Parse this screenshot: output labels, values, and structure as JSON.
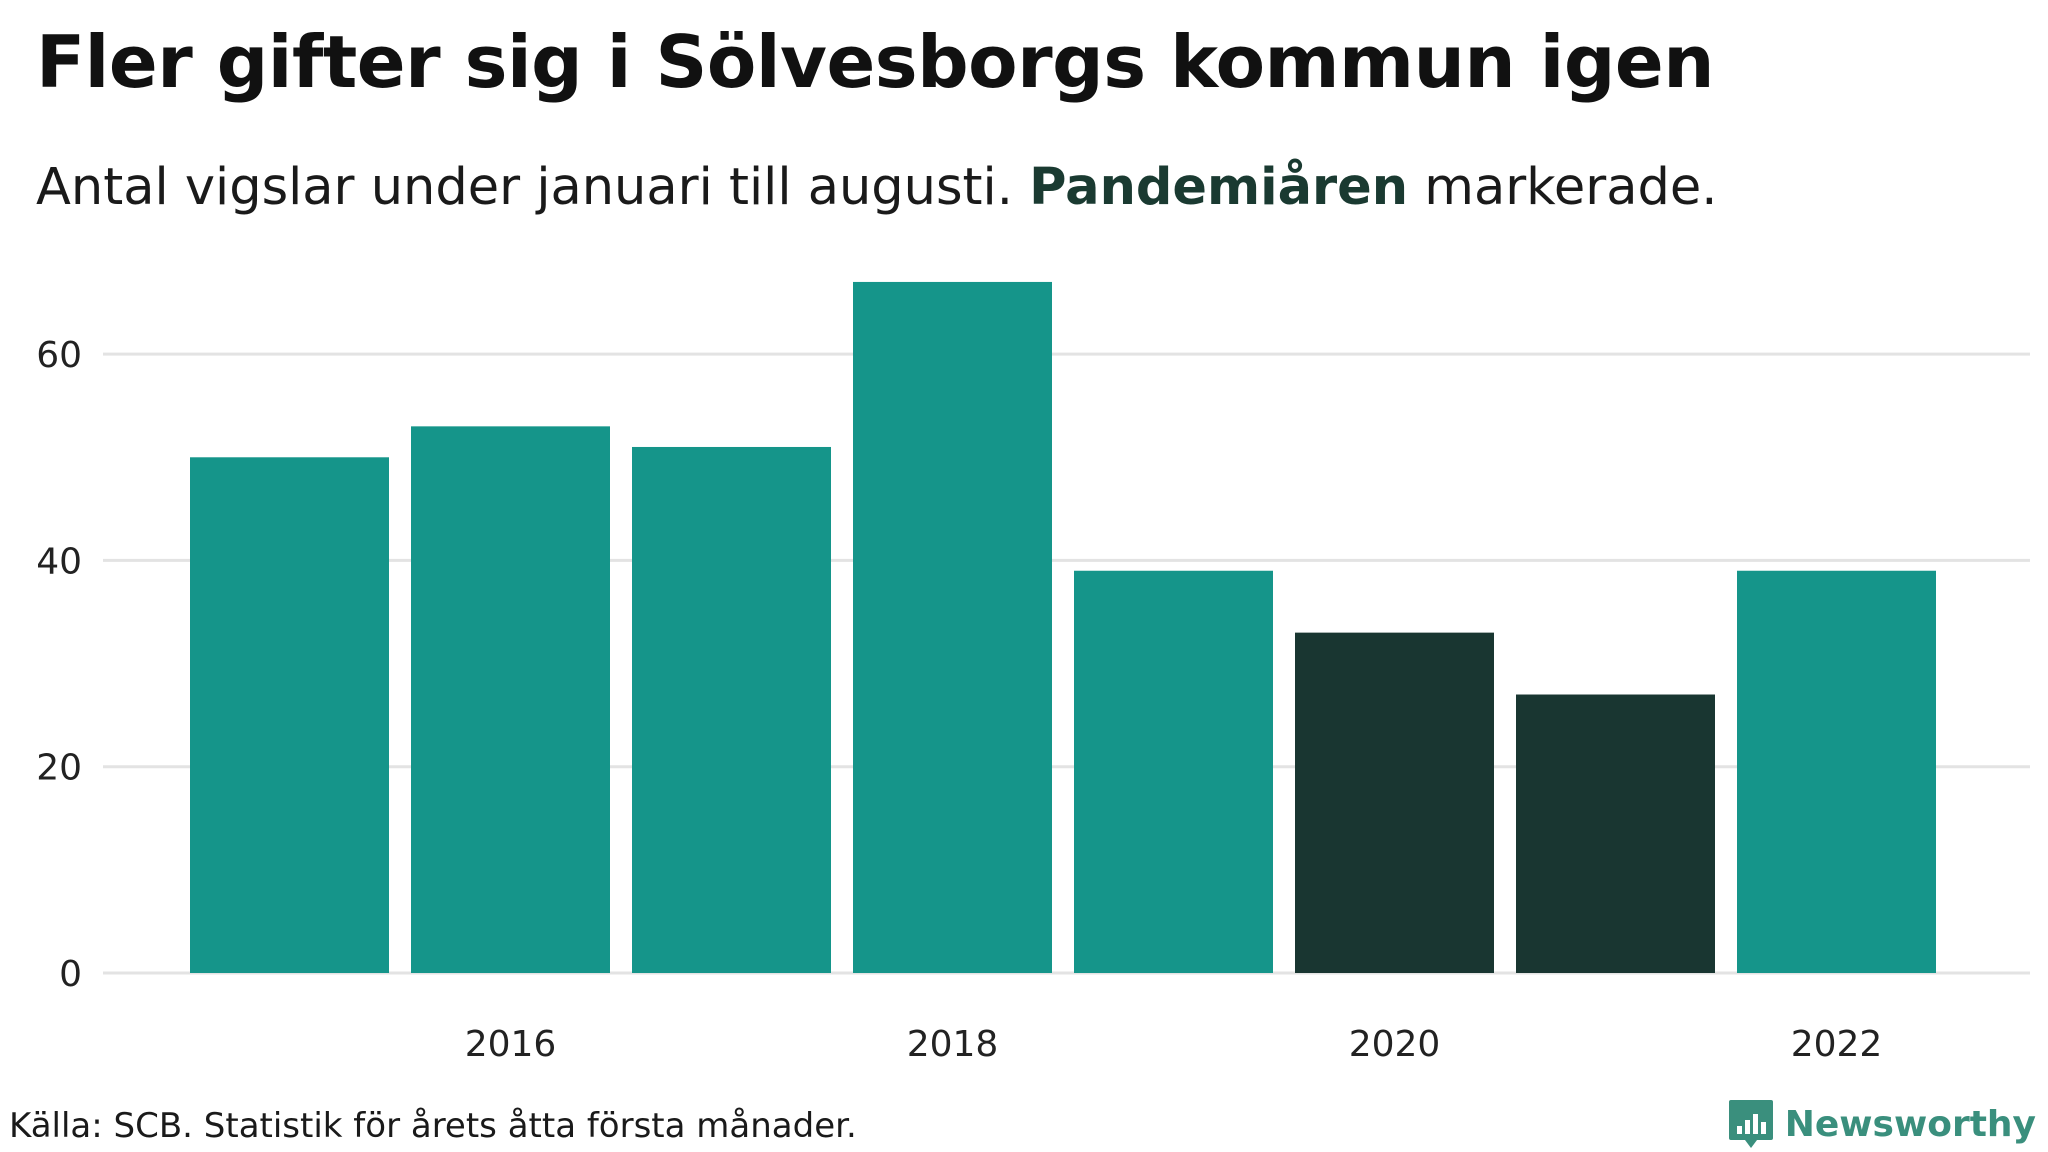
{
  "header": {
    "title": "Fler gifter sig i Sölvesborgs kommun igen",
    "subtitle_pre": "Antal vigslar under januari till augusti.",
    "subtitle_highlight": "Pandemiåren",
    "subtitle_post": "markerade."
  },
  "footer": {
    "source": "Källa: SCB. Statistik för årets åtta första månader.",
    "brand": "Newsworthy"
  },
  "colors": {
    "normal": "#15958a",
    "pandemic": "#193631",
    "grid": "#e3e3e3",
    "brand": "#3a8f7d"
  },
  "chart_data": {
    "type": "bar",
    "categories": [
      "2015",
      "2016",
      "2017",
      "2018",
      "2019",
      "2020",
      "2021",
      "2022"
    ],
    "values": [
      50,
      53,
      51,
      67,
      39,
      33,
      27,
      39
    ],
    "highlighted": [
      false,
      false,
      false,
      false,
      false,
      true,
      true,
      false
    ],
    "x_tick_labels": [
      "2016",
      "2018",
      "2020",
      "2022"
    ],
    "y_ticks": [
      0,
      20,
      40,
      60
    ],
    "ylim": [
      0,
      70
    ],
    "grid": true,
    "title": "Fler gifter sig i Sölvesborgs kommun igen",
    "xlabel": "",
    "ylabel": ""
  }
}
